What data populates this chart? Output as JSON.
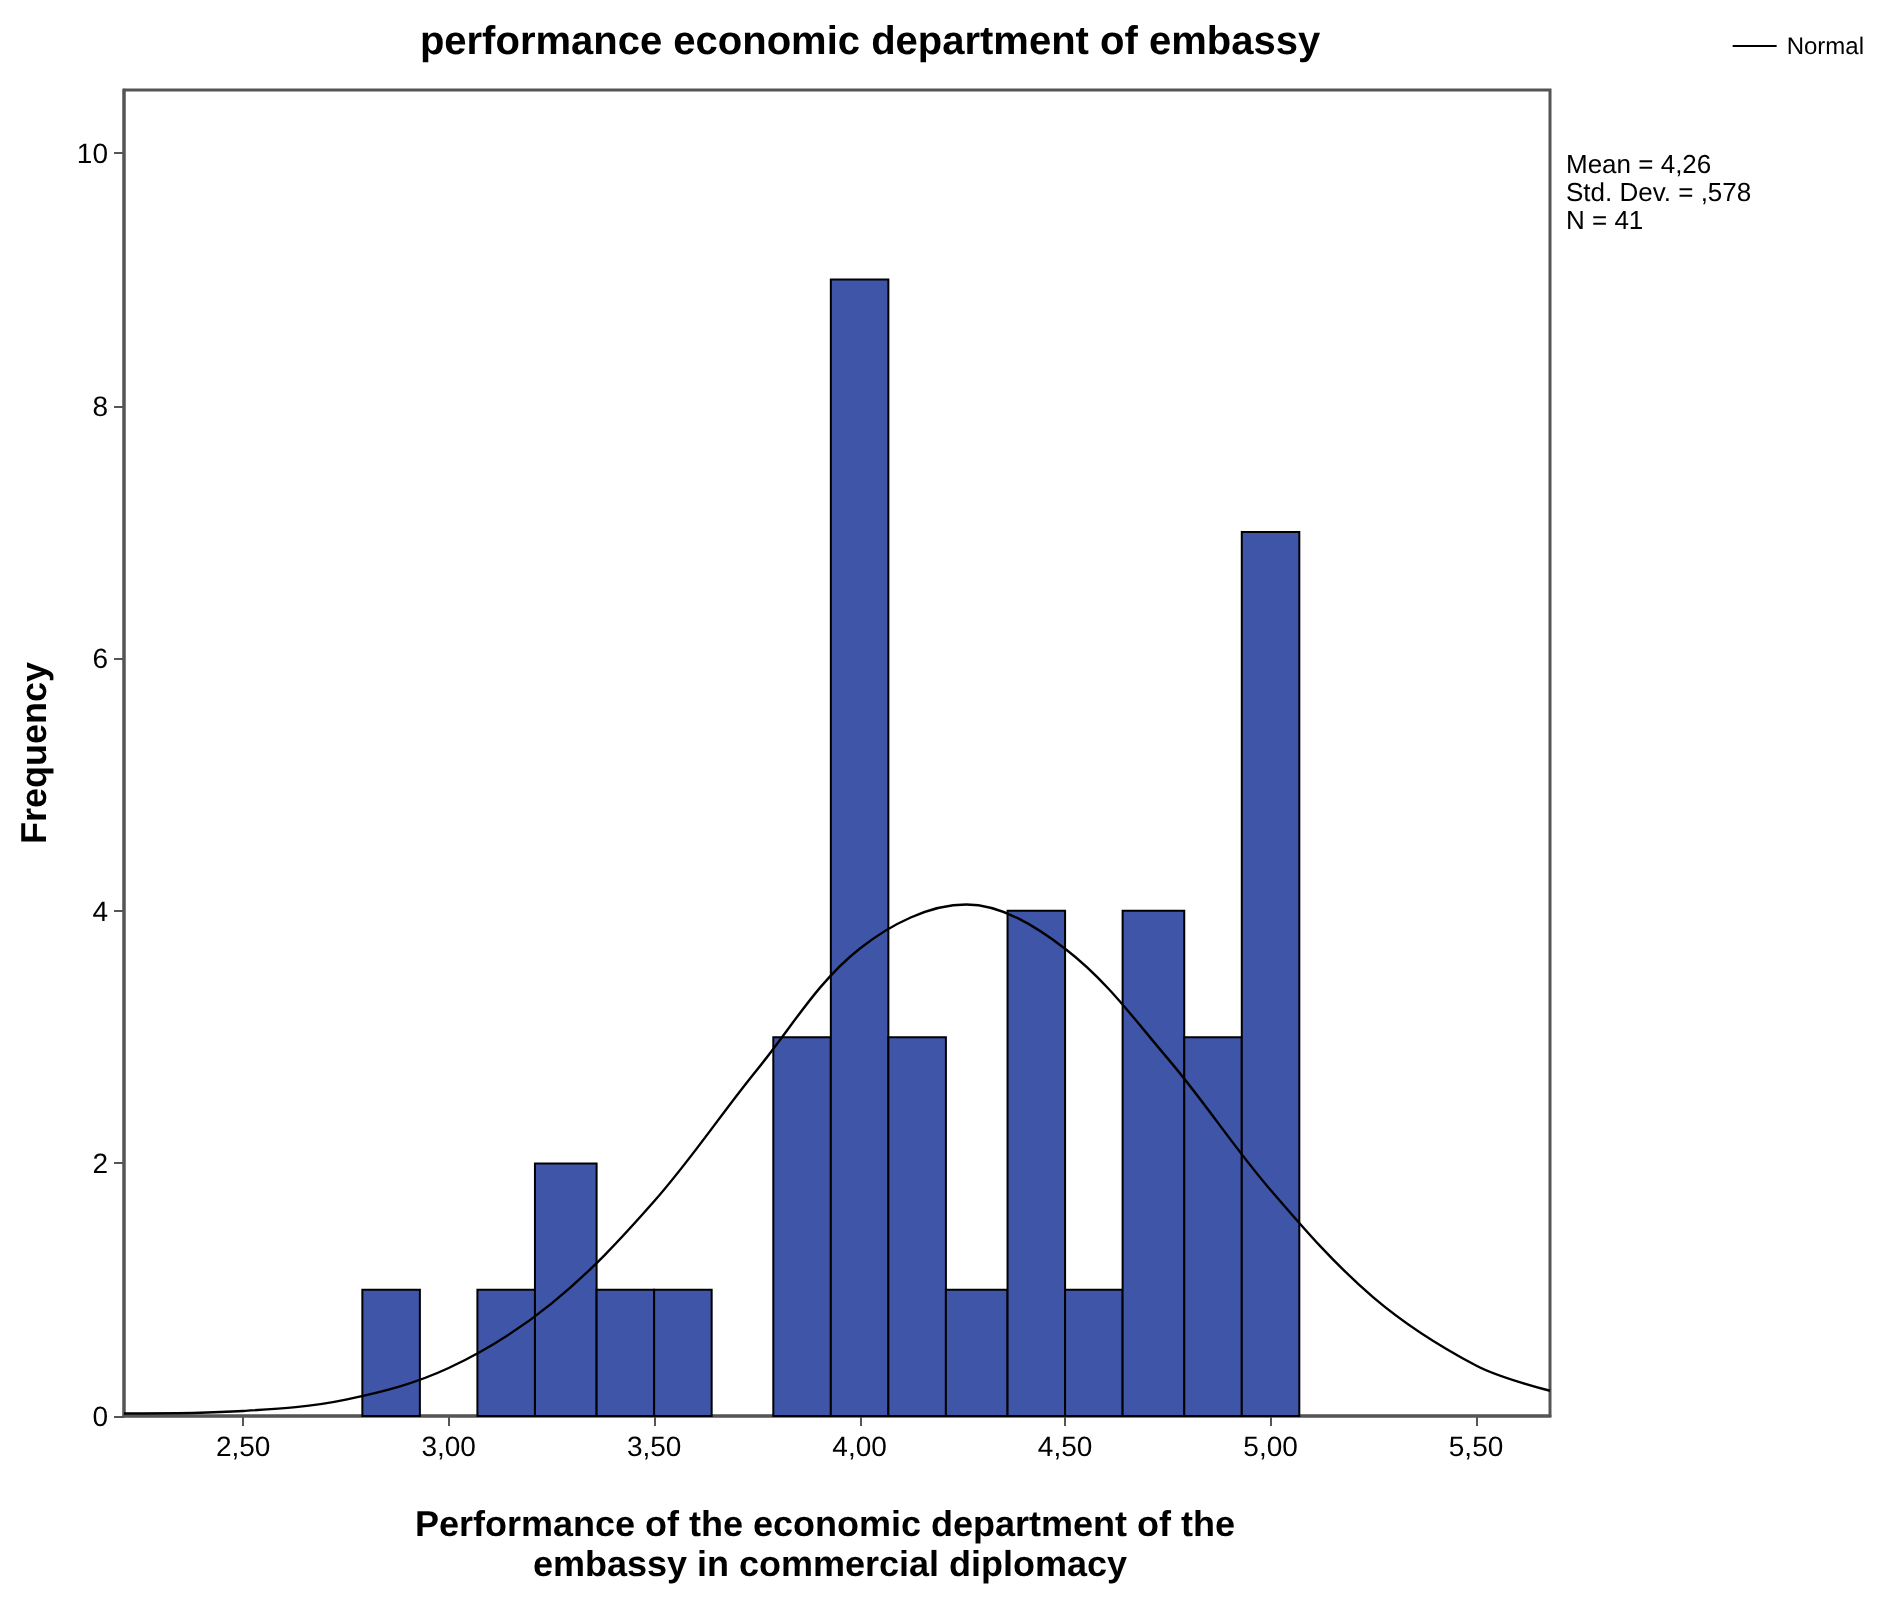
{
  "chart_data": {
    "type": "histogram",
    "title": "performance economic department of embassy",
    "xlabel": "Performance of the economic department of the embassy in commercial diplomacy",
    "ylabel": "Frequency",
    "series": [
      {
        "color": "#3f55a8",
        "bins": [
          2.79,
          2.93,
          3.07,
          3.21,
          3.36,
          3.5,
          3.64,
          3.79,
          3.93,
          4.07,
          4.21,
          4.36,
          4.5,
          4.64,
          4.79,
          4.93,
          5.07
        ],
        "values": [
          1,
          0,
          1,
          2,
          1,
          1,
          0,
          3,
          9,
          3,
          1,
          4,
          1,
          4,
          3,
          7
        ]
      },
      {
        "type": "line",
        "name": "Normal",
        "color": "#000000",
        "x": [
          2.21,
          2.5,
          2.75,
          3.0,
          3.25,
          3.5,
          3.75,
          4.0,
          4.26,
          4.5,
          4.75,
          5.0,
          5.25,
          5.5,
          5.68
        ],
        "values": [
          0.02,
          0.04,
          0.13,
          0.38,
          0.89,
          1.7,
          2.74,
          3.7,
          4.05,
          3.7,
          2.83,
          1.79,
          0.94,
          0.4,
          0.2
        ]
      }
    ],
    "xlim": [
      2.21,
      5.68
    ],
    "xticks": [
      {
        "value": 2.5,
        "label": "2,50"
      },
      {
        "value": 3,
        "label": "3,00"
      },
      {
        "value": 3.5,
        "label": "3,50"
      },
      {
        "value": 4,
        "label": "4,00"
      },
      {
        "value": 4.5,
        "label": "4,50"
      },
      {
        "value": 5,
        "label": "5,00"
      },
      {
        "value": 5.5,
        "label": "5,50"
      }
    ],
    "ylim": [
      0,
      10.5
    ],
    "yticks": [
      0,
      2,
      4,
      6,
      8,
      10
    ],
    "grid": false,
    "legend": "top right",
    "annotations": [
      "Mean = 4,26",
      "Std. Dev. = ,578",
      "N = 41"
    ]
  }
}
